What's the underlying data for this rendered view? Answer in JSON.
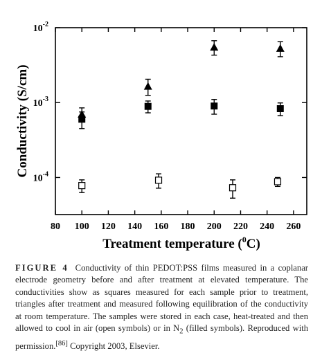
{
  "chart_data": {
    "type": "scatter",
    "xlabel": {
      "text": "Treatment temperature (",
      "sup": "0",
      "tail": "C)"
    },
    "ylabel": "Conductivity (S/cm)",
    "xlim": [
      80,
      270
    ],
    "xticks": [
      80,
      100,
      120,
      140,
      160,
      180,
      200,
      220,
      240,
      260
    ],
    "ylim": [
      3.2e-05,
      0.01
    ],
    "ylog": true,
    "yticks": [
      {
        "value": 0.01,
        "label": "10",
        "exponent": "-2"
      },
      {
        "value": 0.001,
        "label": "10",
        "exponent": "-3"
      },
      {
        "value": 0.0001,
        "label": "10",
        "exponent": "-4"
      }
    ],
    "series": [
      {
        "marker": "triangle",
        "color": "#000",
        "x": [
          100,
          150,
          200,
          250
        ],
        "values": [
          0.0007,
          0.00165,
          0.0055,
          0.0053
        ],
        "errors": [
          0.00015,
          0.0004,
          0.0012,
          0.0012
        ]
      },
      {
        "marker": "square",
        "color": "#000",
        "x": [
          100,
          150,
          200,
          250
        ],
        "values": [
          0.0006,
          0.00089,
          0.0009,
          0.00083
        ],
        "errors": [
          0.00015,
          0.00016,
          0.0002,
          0.00016
        ]
      },
      {
        "marker": "open-square",
        "color": "#000",
        "x": [
          100,
          158,
          214,
          248
        ],
        "values": [
          7.8e-05,
          9.2e-05,
          7.3e-05,
          8.8e-05
        ],
        "errors": [
          1.5e-05,
          2e-05,
          2e-05,
          1.2e-05
        ]
      }
    ]
  },
  "caption": {
    "label": "FIGURE 4",
    "text": "Conductivity of thin PEDOT:PSS films measured in a coplanar electrode geometry before and after treatment at elevated temperature. The conductivities show as squares measured for each sample prior to treatment, triangles after treatment and measured following equilibration of the conductivity at room temperature. The samples were stored in each case, heat-treated and then allowed to cool in air (open symbols) or in N",
    "sub": "2",
    "text2": " (filled symbols). Reproduced with permission.",
    "ref": "[86]",
    "text3": " Copyright 2003, Elsevier."
  }
}
